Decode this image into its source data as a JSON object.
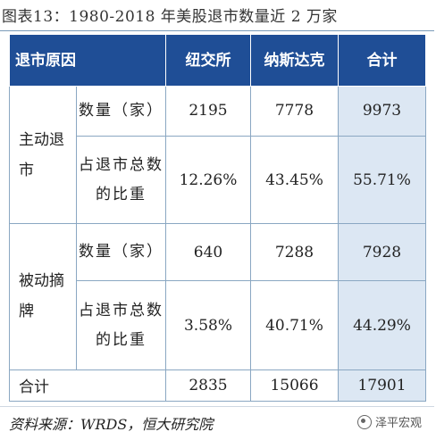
{
  "title": "图表13：1980-2018 年美股退市数量近 2 万家",
  "table": {
    "header": {
      "reason": "退市原因",
      "nyse": "纽交所",
      "nasdaq": "纳斯达克",
      "total": "合计"
    },
    "groups": [
      {
        "label": "主动退市",
        "rows": [
          {
            "metric": "数量（家）",
            "nyse": "2195",
            "nasdaq": "7778",
            "total": "9973"
          },
          {
            "metric": "占退市总数的比重",
            "nyse": "12.26%",
            "nasdaq": "43.45%",
            "total": "55.71%"
          }
        ]
      },
      {
        "label": "被动摘牌",
        "rows": [
          {
            "metric": "数量（家）",
            "nyse": "640",
            "nasdaq": "7288",
            "total": "7928"
          },
          {
            "metric": "占退市总数的比重",
            "nyse": "3.58%",
            "nasdaq": "40.71%",
            "total": "44.29%"
          }
        ]
      }
    ],
    "total_row": {
      "label": "合计",
      "nyse": "2835",
      "nasdaq": "15066",
      "total": "17901"
    }
  },
  "source": "资料来源：WRDS，恒大研究院",
  "watermark": "泽平宏观"
}
